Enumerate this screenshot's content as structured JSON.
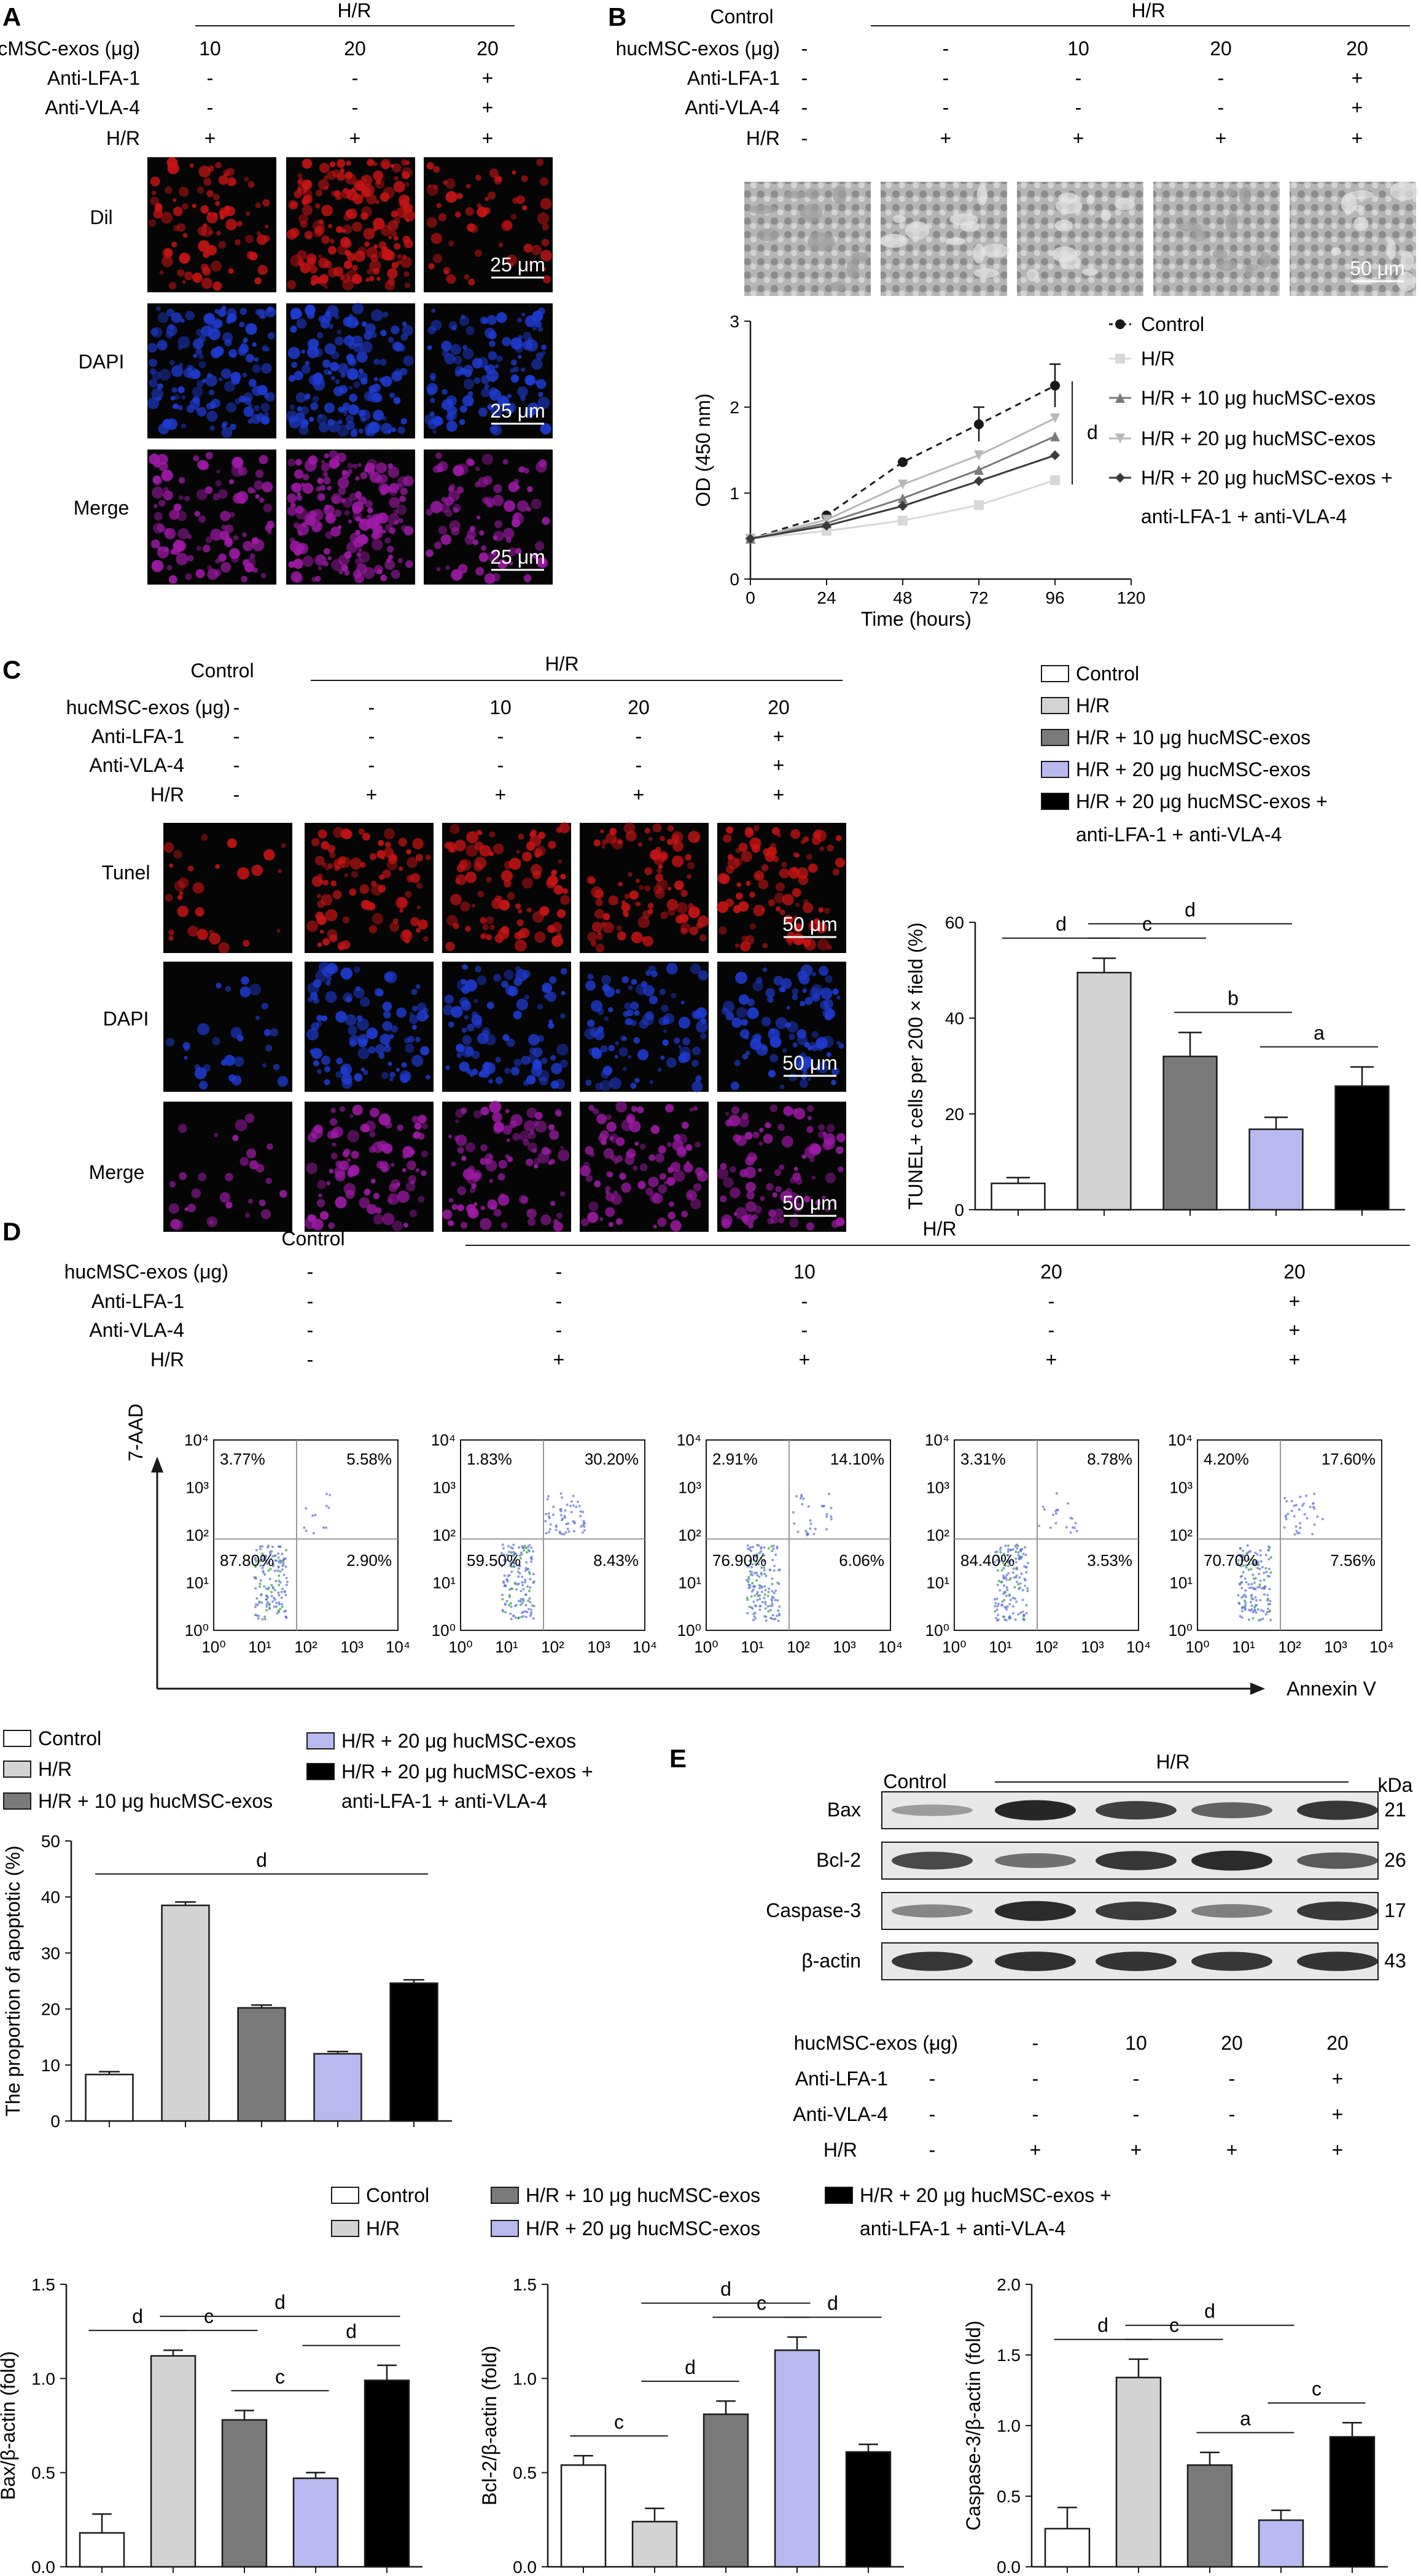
{
  "panel_letters": [
    "A",
    "B",
    "C",
    "D",
    "E"
  ],
  "common": {
    "hr": "H/R",
    "control": "Control",
    "row_exos": "hucMSC-exos (μg)",
    "row_lfa": "Anti-LFA-1",
    "row_vla": "Anti-VLA-4",
    "row_hr": "H/R",
    "kda": "kDa"
  },
  "legend": {
    "control": "Control",
    "hr": "H/R",
    "hr10": "H/R + 10 μg hucMSC-exos",
    "hr20": "H/R + 20 μg hucMSC-exos",
    "hr20anti_1": "H/R + 20 μg hucMSC-exos +",
    "hr20anti_2": "anti-LFA-1 + anti-VLA-4"
  },
  "colors": {
    "control": "#ffffff",
    "hr": "#d3d3d3",
    "hr10": "#7a7a7a",
    "hr20": "#b9b9f0",
    "hr20anti": "#000000",
    "red_stain": "#c81414",
    "blue_stain": "#1e3cd2",
    "merge": "#a01aa8"
  },
  "panelA": {
    "conditions": {
      "exos": [
        "10",
        "20",
        "20"
      ],
      "lfa": [
        "-",
        "-",
        "+"
      ],
      "vla": [
        "-",
        "-",
        "+"
      ],
      "hr": [
        "+",
        "+",
        "+"
      ]
    },
    "rows": [
      "Dil",
      "DAPI",
      "Merge"
    ],
    "scale": "25 μm"
  },
  "panelB": {
    "conditions": {
      "exos": [
        "-",
        "-",
        "10",
        "20",
        "20"
      ],
      "lfa": [
        "-",
        "-",
        "-",
        "-",
        "+"
      ],
      "vla": [
        "-",
        "-",
        "-",
        "-",
        "+"
      ],
      "hr": [
        "-",
        "+",
        "+",
        "+",
        "+"
      ]
    },
    "scale": "50 μm",
    "sig": "d"
  },
  "panelC": {
    "conditions": {
      "exos": [
        "-",
        "-",
        "10",
        "20",
        "20"
      ],
      "lfa": [
        "-",
        "-",
        "-",
        "-",
        "+"
      ],
      "vla": [
        "-",
        "-",
        "-",
        "-",
        "+"
      ],
      "hr": [
        "-",
        "+",
        "+",
        "+",
        "+"
      ]
    },
    "rows": [
      "Tunel",
      "DAPI",
      "Merge"
    ],
    "scale": "50 μm"
  },
  "panelD": {
    "conditions": {
      "exos": [
        "-",
        "-",
        "10",
        "20",
        "20"
      ],
      "lfa": [
        "-",
        "-",
        "-",
        "-",
        "+"
      ],
      "vla": [
        "-",
        "-",
        "-",
        "-",
        "+"
      ],
      "hr": [
        "-",
        "+",
        "+",
        "+",
        "+"
      ]
    },
    "y_axis": "7-AAD",
    "x_axis": "Annexin V",
    "ticks": [
      "10⁰",
      "10¹",
      "10²",
      "10³",
      "10⁴"
    ],
    "quadrants": [
      {
        "ul": "3.77%",
        "ur": "5.58%",
        "ll": "87.80%",
        "lr": "2.90%"
      },
      {
        "ul": "1.83%",
        "ur": "30.20%",
        "ll": "59.50%",
        "lr": "8.43%"
      },
      {
        "ul": "2.91%",
        "ur": "14.10%",
        "ll": "76.90%",
        "lr": "6.06%"
      },
      {
        "ul": "3.31%",
        "ur": "8.78%",
        "ll": "84.40%",
        "lr": "3.53%"
      },
      {
        "ul": "4.20%",
        "ur": "17.60%",
        "ll": "70.70%",
        "lr": "7.56%"
      }
    ]
  },
  "panelE": {
    "bands": [
      {
        "name": "Bax",
        "kda": "21"
      },
      {
        "name": "Bcl-2",
        "kda": "26"
      },
      {
        "name": "Caspase-3",
        "kda": "17"
      },
      {
        "name": "β-actin",
        "kda": "43"
      }
    ],
    "conditions": {
      "exos": [
        "-",
        "-",
        "10",
        "20",
        "20"
      ],
      "lfa": [
        "-",
        "-",
        "-",
        "-",
        "+"
      ],
      "vla": [
        "-",
        "-",
        "-",
        "-",
        "+"
      ],
      "hr": [
        "-",
        "+",
        "+",
        "+",
        "+"
      ]
    }
  },
  "chart_data": [
    {
      "id": "B-proliferation",
      "type": "line",
      "xlabel": "Time (hours)",
      "ylabel": "OD (450 nm)",
      "xlim": [
        0,
        120
      ],
      "ylim": [
        0,
        3
      ],
      "xticks": [
        0,
        24,
        48,
        72,
        96,
        120
      ],
      "yticks": [
        0,
        1,
        2,
        3
      ],
      "x": [
        0,
        24,
        48,
        72,
        96
      ],
      "series": [
        {
          "name": "Control",
          "values": [
            0.47,
            0.74,
            1.36,
            1.8,
            2.25
          ],
          "err": [
            0,
            0,
            0,
            0.2,
            0.25
          ]
        },
        {
          "name": "H/R",
          "values": [
            0.47,
            0.56,
            0.68,
            0.86,
            1.15
          ]
        },
        {
          "name": "H/R + 10 μg hucMSC-exos",
          "values": [
            0.47,
            0.65,
            0.94,
            1.27,
            1.66
          ]
        },
        {
          "name": "H/R + 20 μg hucMSC-exos",
          "values": [
            0.47,
            0.69,
            1.1,
            1.44,
            1.87
          ]
        },
        {
          "name": "H/R + 20 μg hucMSC-exos + anti-LFA-1 + anti-VLA-4",
          "values": [
            0.47,
            0.62,
            0.85,
            1.14,
            1.44
          ]
        }
      ]
    },
    {
      "id": "C-tunel",
      "type": "bar",
      "ylabel": "TUNEL+ cells per 200 × field (%)",
      "ylim": [
        0,
        60
      ],
      "yticks": [
        0,
        20,
        40,
        60
      ],
      "values": [
        5.5,
        49.5,
        32,
        16.8,
        25.8
      ],
      "errors": [
        1.2,
        3,
        5,
        2.5,
        4
      ],
      "sig": [
        {
          "from": 0,
          "to": 1,
          "label": "d"
        },
        {
          "from": 1,
          "to": 3,
          "label": "d"
        },
        {
          "from": 1,
          "to": 2,
          "label": "c"
        },
        {
          "from": 2,
          "to": 3,
          "label": "b"
        },
        {
          "from": 3,
          "to": 4,
          "label": "a"
        }
      ]
    },
    {
      "id": "D-apoptosis",
      "type": "bar",
      "ylabel": "The proportion of apoptotic (%)",
      "ylim": [
        0,
        50
      ],
      "yticks": [
        0,
        10,
        20,
        30,
        40,
        50
      ],
      "values": [
        8.3,
        38.5,
        20.2,
        12,
        24.6
      ],
      "errors": [
        0.5,
        0.6,
        0.5,
        0.4,
        0.6
      ],
      "sig": [
        {
          "from": 0,
          "to": 4,
          "label": "d"
        }
      ]
    },
    {
      "id": "E-bax",
      "type": "bar",
      "ylabel": "Bax/β-actin (fold)",
      "ylim": [
        0,
        1.5
      ],
      "yticks": [
        0.0,
        0.5,
        1.0,
        1.5
      ],
      "values": [
        0.18,
        1.12,
        0.78,
        0.47,
        0.99
      ],
      "errors": [
        0.1,
        0.03,
        0.05,
        0.03,
        0.08
      ],
      "sig": [
        {
          "from": 0,
          "to": 1,
          "label": "d"
        },
        {
          "from": 1,
          "to": 4,
          "label": "d"
        },
        {
          "from": 1,
          "to": 2,
          "label": "c"
        },
        {
          "from": 2,
          "to": 3,
          "label": "c"
        },
        {
          "from": 3,
          "to": 4,
          "label": "d"
        }
      ]
    },
    {
      "id": "E-bcl2",
      "type": "bar",
      "ylabel": "Bcl-2/β-actin (fold)",
      "ylim": [
        0,
        1.5
      ],
      "yticks": [
        0.0,
        0.5,
        1.0,
        1.5
      ],
      "values": [
        0.54,
        0.24,
        0.81,
        1.15,
        0.61
      ],
      "errors": [
        0.05,
        0.07,
        0.07,
        0.07,
        0.04
      ],
      "sig": [
        {
          "from": 0,
          "to": 1,
          "label": "c"
        },
        {
          "from": 1,
          "to": 2,
          "label": "d"
        },
        {
          "from": 1,
          "to": 3,
          "label": "d"
        },
        {
          "from": 2,
          "to": 3,
          "label": "c"
        },
        {
          "from": 3,
          "to": 4,
          "label": "d"
        }
      ]
    },
    {
      "id": "E-casp3",
      "type": "bar",
      "ylabel": "Caspase-3/β-actin (fold)",
      "ylim": [
        0,
        2.0
      ],
      "yticks": [
        0.0,
        0.5,
        1.0,
        1.5,
        2.0
      ],
      "values": [
        0.27,
        1.34,
        0.72,
        0.33,
        0.92
      ],
      "errors": [
        0.15,
        0.13,
        0.09,
        0.07,
        0.1
      ],
      "sig": [
        {
          "from": 0,
          "to": 1,
          "label": "d"
        },
        {
          "from": 1,
          "to": 3,
          "label": "d"
        },
        {
          "from": 1,
          "to": 2,
          "label": "c"
        },
        {
          "from": 2,
          "to": 3,
          "label": "a"
        },
        {
          "from": 3,
          "to": 4,
          "label": "c"
        }
      ]
    }
  ]
}
